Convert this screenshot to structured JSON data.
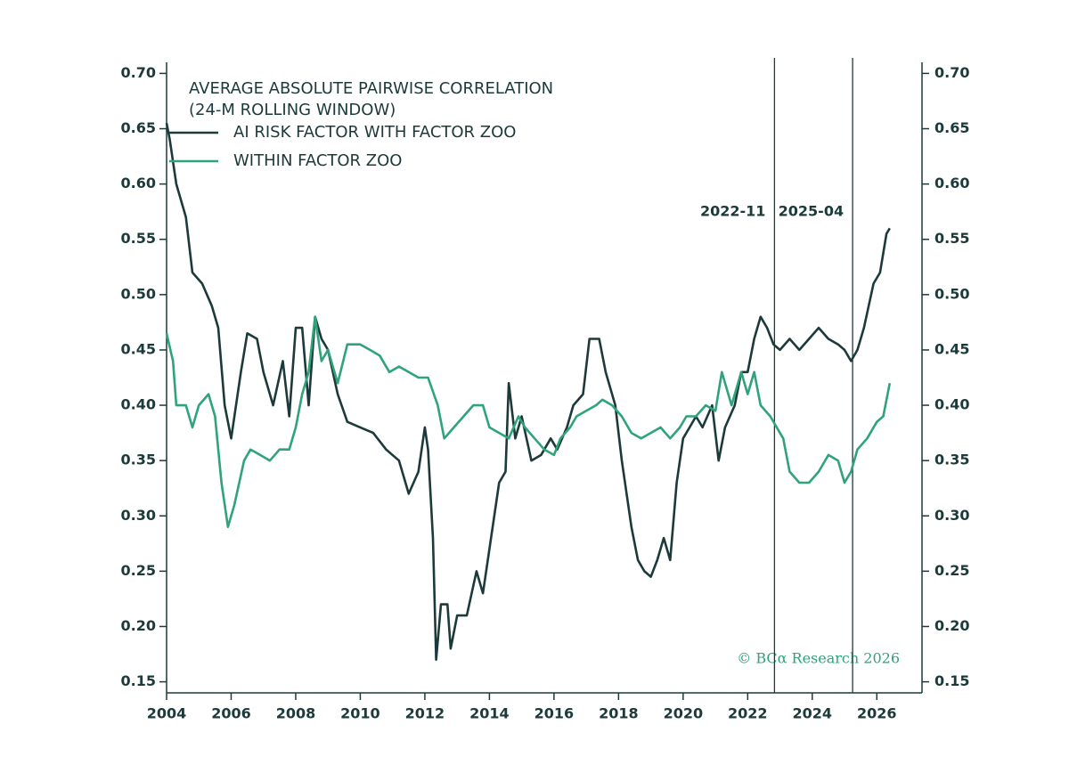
{
  "chart_data": {
    "type": "line",
    "title": "AVERAGE ABSOLUTE PAIRWISE CORRELATION",
    "subtitle": "(24-M ROLLING WINDOW)",
    "source": "© BCα Research 2026",
    "xlim": [
      2004,
      2027.4
    ],
    "xticks": [
      2004,
      2006,
      2008,
      2010,
      2012,
      2014,
      2016,
      2018,
      2020,
      2022,
      2024,
      2026
    ],
    "ylim": [
      0.14,
      0.71
    ],
    "yticks": [
      {
        "value": 0.15,
        "label": "0.15"
      },
      {
        "value": 0.2,
        "label": "0.20"
      },
      {
        "value": 0.25,
        "label": "0.25"
      },
      {
        "value": 0.3,
        "label": "0.30"
      },
      {
        "value": 0.35,
        "label": "0.35"
      },
      {
        "value": 0.4,
        "label": "0.40"
      },
      {
        "value": 0.45,
        "label": "0.45"
      },
      {
        "value": 0.5,
        "label": "0.50"
      },
      {
        "value": 0.55,
        "label": "0.55"
      },
      {
        "value": 0.6,
        "label": "0.60"
      },
      {
        "value": 0.65,
        "label": "0.65"
      },
      {
        "value": 0.7,
        "label": "0.70"
      }
    ],
    "markers": [
      {
        "x": 2022.83,
        "label": "2022-11"
      },
      {
        "x": 2025.25,
        "label": "2025-04"
      }
    ],
    "legend": "top-left",
    "series": [
      {
        "name": "AI RISK FACTOR WITH FACTOR ZOO",
        "color": "#1d3a3a",
        "x": [
          2004.0,
          2004.1,
          2004.3,
          2004.6,
          2004.8,
          2005.1,
          2005.4,
          2005.6,
          2005.8,
          2006.0,
          2006.3,
          2006.5,
          2006.8,
          2007.0,
          2007.3,
          2007.6,
          2007.8,
          2008.0,
          2008.2,
          2008.4,
          2008.6,
          2008.8,
          2009.0,
          2009.3,
          2009.6,
          2010.0,
          2010.4,
          2010.8,
          2011.2,
          2011.5,
          2011.8,
          2012.0,
          2012.1,
          2012.25,
          2012.35,
          2012.5,
          2012.7,
          2012.8,
          2013.0,
          2013.3,
          2013.6,
          2013.8,
          2014.0,
          2014.3,
          2014.5,
          2014.6,
          2014.8,
          2015.0,
          2015.3,
          2015.6,
          2015.9,
          2016.1,
          2016.4,
          2016.6,
          2016.9,
          2017.1,
          2017.4,
          2017.6,
          2017.9,
          2018.1,
          2018.4,
          2018.6,
          2018.8,
          2019.0,
          2019.2,
          2019.4,
          2019.6,
          2019.8,
          2020.0,
          2020.2,
          2020.4,
          2020.6,
          2020.9,
          2021.1,
          2021.3,
          2021.6,
          2021.8,
          2022.0,
          2022.2,
          2022.4,
          2022.6,
          2022.8,
          2023.0,
          2023.3,
          2023.6,
          2023.9,
          2024.2,
          2024.5,
          2024.8,
          2025.0,
          2025.2,
          2025.4,
          2025.6,
          2025.9,
          2026.1,
          2026.3,
          2026.4
        ],
        "values": [
          0.655,
          0.64,
          0.6,
          0.57,
          0.52,
          0.51,
          0.49,
          0.47,
          0.4,
          0.37,
          0.43,
          0.465,
          0.46,
          0.43,
          0.4,
          0.44,
          0.39,
          0.47,
          0.47,
          0.4,
          0.48,
          0.46,
          0.45,
          0.41,
          0.385,
          0.38,
          0.375,
          0.36,
          0.35,
          0.32,
          0.34,
          0.38,
          0.36,
          0.28,
          0.17,
          0.22,
          0.22,
          0.18,
          0.21,
          0.21,
          0.25,
          0.23,
          0.27,
          0.33,
          0.34,
          0.42,
          0.37,
          0.39,
          0.35,
          0.355,
          0.37,
          0.36,
          0.38,
          0.4,
          0.41,
          0.46,
          0.46,
          0.43,
          0.4,
          0.35,
          0.29,
          0.26,
          0.25,
          0.245,
          0.26,
          0.28,
          0.26,
          0.33,
          0.37,
          0.38,
          0.39,
          0.38,
          0.4,
          0.35,
          0.38,
          0.4,
          0.43,
          0.43,
          0.46,
          0.48,
          0.47,
          0.455,
          0.45,
          0.46,
          0.45,
          0.46,
          0.47,
          0.46,
          0.455,
          0.45,
          0.44,
          0.45,
          0.47,
          0.51,
          0.52,
          0.555,
          0.56
        ]
      },
      {
        "name": "WITHIN FACTOR ZOO",
        "color": "#2fa37a",
        "x": [
          2004.0,
          2004.2,
          2004.3,
          2004.6,
          2004.8,
          2005.0,
          2005.3,
          2005.5,
          2005.7,
          2005.9,
          2006.1,
          2006.4,
          2006.6,
          2006.9,
          2007.2,
          2007.5,
          2007.8,
          2008.0,
          2008.2,
          2008.4,
          2008.6,
          2008.8,
          2009.0,
          2009.3,
          2009.6,
          2010.0,
          2010.3,
          2010.6,
          2010.9,
          2011.2,
          2011.5,
          2011.8,
          2012.1,
          2012.4,
          2012.6,
          2012.9,
          2013.2,
          2013.5,
          2013.8,
          2014.0,
          2014.3,
          2014.6,
          2014.9,
          2015.1,
          2015.4,
          2015.7,
          2016.0,
          2016.2,
          2016.5,
          2016.7,
          2017.0,
          2017.3,
          2017.5,
          2017.8,
          2018.1,
          2018.4,
          2018.7,
          2019.0,
          2019.3,
          2019.6,
          2019.9,
          2020.1,
          2020.4,
          2020.7,
          2021.0,
          2021.2,
          2021.5,
          2021.8,
          2022.0,
          2022.2,
          2022.4,
          2022.7,
          2022.9,
          2023.1,
          2023.3,
          2023.6,
          2023.9,
          2024.2,
          2024.5,
          2024.8,
          2025.0,
          2025.2,
          2025.4,
          2025.7,
          2026.0,
          2026.2,
          2026.4
        ],
        "values": [
          0.465,
          0.44,
          0.4,
          0.4,
          0.38,
          0.4,
          0.41,
          0.39,
          0.33,
          0.29,
          0.31,
          0.35,
          0.36,
          0.355,
          0.35,
          0.36,
          0.36,
          0.38,
          0.41,
          0.43,
          0.48,
          0.44,
          0.45,
          0.42,
          0.455,
          0.455,
          0.45,
          0.445,
          0.43,
          0.435,
          0.43,
          0.425,
          0.425,
          0.4,
          0.37,
          0.38,
          0.39,
          0.4,
          0.4,
          0.38,
          0.375,
          0.37,
          0.39,
          0.38,
          0.37,
          0.36,
          0.355,
          0.37,
          0.38,
          0.39,
          0.395,
          0.4,
          0.405,
          0.4,
          0.39,
          0.375,
          0.37,
          0.375,
          0.38,
          0.37,
          0.38,
          0.39,
          0.39,
          0.4,
          0.395,
          0.43,
          0.4,
          0.43,
          0.41,
          0.43,
          0.4,
          0.39,
          0.38,
          0.37,
          0.34,
          0.33,
          0.33,
          0.34,
          0.355,
          0.35,
          0.33,
          0.34,
          0.36,
          0.37,
          0.385,
          0.39,
          0.42
        ]
      }
    ]
  }
}
